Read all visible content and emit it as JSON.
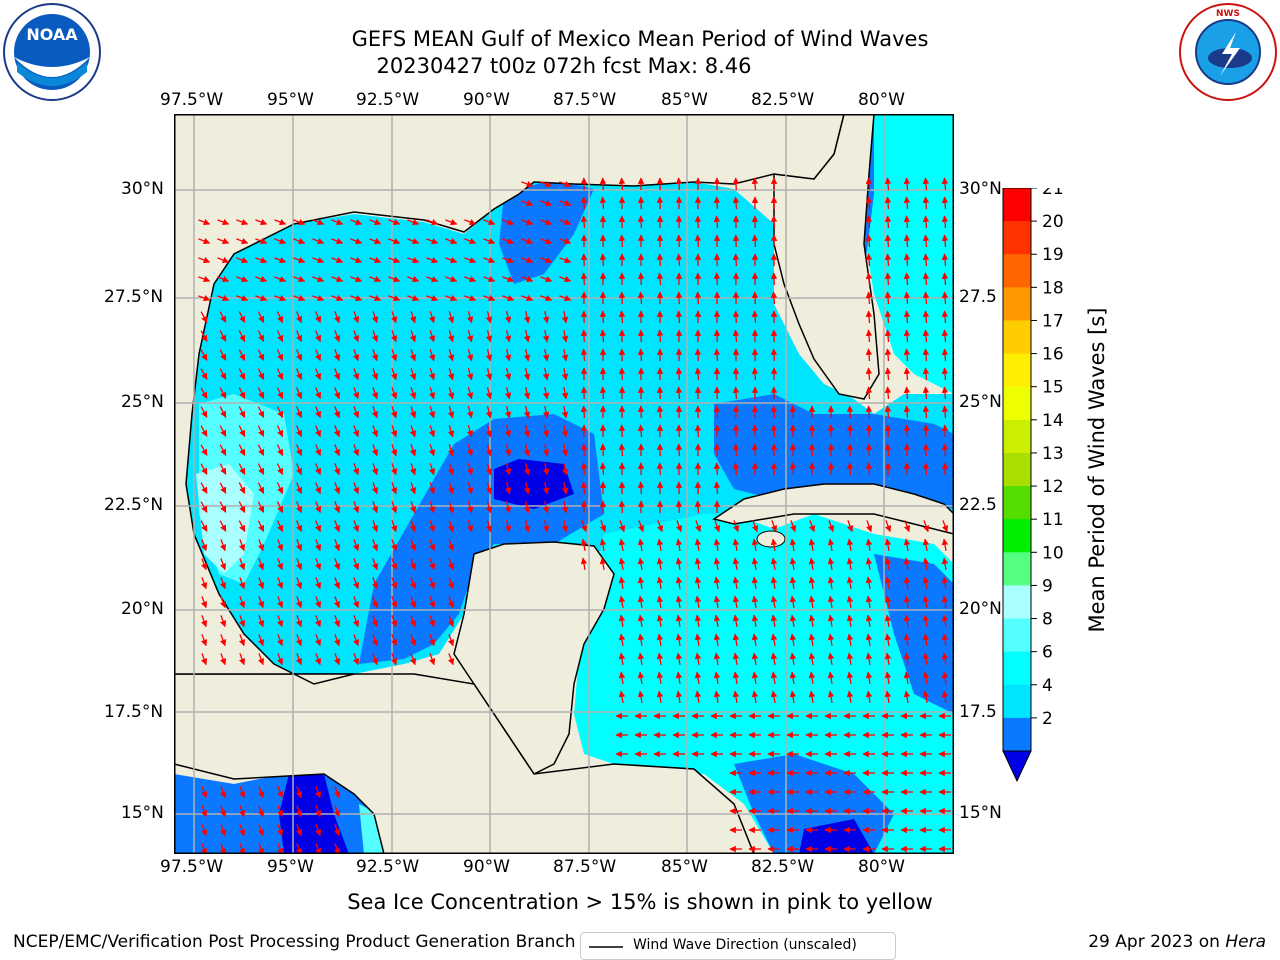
{
  "title": {
    "line1": "GEFS MEAN Gulf of Mexico Mean Period of Wind Waves",
    "line2": "20230427 t00z 072h fcst   Max: 8.46"
  },
  "axes": {
    "lon_labels": [
      "97.5°W",
      "95°W",
      "92.5°W",
      "90°W",
      "87.5°W",
      "85°W",
      "82.5°W",
      "80°W"
    ],
    "lat_labels": [
      "30°N",
      "27.5°N",
      "25°N",
      "22.5°N",
      "20°N",
      "17.5°N",
      "15°N"
    ],
    "lat_labels_right": [
      "30°N",
      "27.5",
      "25°N",
      "22.5",
      "20°N",
      "17.5",
      "15°N"
    ]
  },
  "legend": {
    "label": "Wind Wave Direction (unscaled)"
  },
  "colorbar": {
    "label": "Mean Period of Wind Waves [s]",
    "ticks": [
      "2",
      "4",
      "6",
      "8",
      "9",
      "10",
      "11",
      "12",
      "13",
      "14",
      "15",
      "16",
      "17",
      "18",
      "19",
      "20",
      "21"
    ],
    "colors": [
      "#0000e6",
      "#0a78ff",
      "#00e5ff",
      "#00ffff",
      "#55ffff",
      "#aaffff",
      "#55ff7f",
      "#00ee00",
      "#55dd00",
      "#aadd00",
      "#ccee00",
      "#eeff00",
      "#ffee00",
      "#ffcc00",
      "#ff9900",
      "#ff6600",
      "#ff3300",
      "#ff0000"
    ]
  },
  "logos": {
    "left": "NOAA",
    "right": "NATIONAL WEATHER SERVICE"
  },
  "footer": {
    "note": "Sea Ice Concentration > 15% is shown in pink to yellow",
    "left": "NCEP/EMC/Verification Post Processing Product Generation Branch",
    "right_date": "29 Apr 2023 on ",
    "right_host": "Hera"
  },
  "colors": {
    "land": "#efeddc",
    "grid": "#b0b0b0",
    "arrow": "#ff0000",
    "coast": "#000000"
  }
}
